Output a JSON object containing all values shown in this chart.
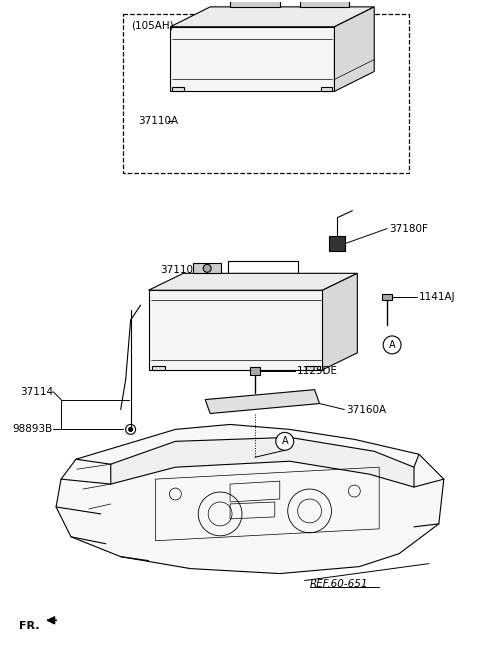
{
  "bg_color": "#ffffff",
  "lc": "#000000",
  "fig_width": 4.8,
  "fig_height": 6.56,
  "dpi": 100,
  "parts": {
    "battery_top_label": "37110A",
    "battery_top_note": "(105AH)",
    "battery_main_label": "37110",
    "sensor_label": "37180F",
    "bolt1_label": "1141AJ",
    "bracket_bolt_label": "1125DE",
    "bracket_label": "37160A",
    "wire_label": "37114",
    "vent_label": "98893B",
    "ref_label": "REF.60-651",
    "fr_label": "FR."
  }
}
